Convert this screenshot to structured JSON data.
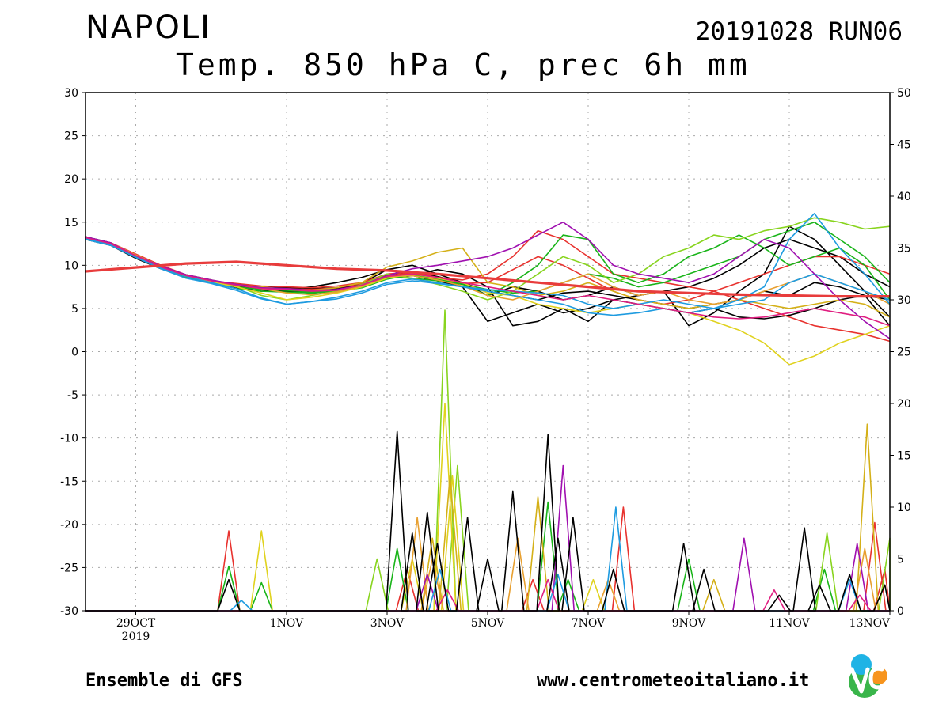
{
  "header": {
    "city": "NAPOLI",
    "run": "20191028 RUN06",
    "subtitle": "Temp. 850 hPa C, prec 6h mm"
  },
  "footer": {
    "left": "Ensemble di GFS",
    "right": "www.centrometeoitaliano.it"
  },
  "logo": {
    "colors": [
      "#39b54a",
      "#1fb3e5",
      "#f7941d"
    ]
  },
  "chart_data": {
    "type": "line",
    "title": "Temp. 850 hPa C, prec 6h mm",
    "x_range_days": [
      0,
      16
    ],
    "x_ticks": [
      {
        "day": 1,
        "label": "29OCT",
        "sub": "2019"
      },
      {
        "day": 4,
        "label": "1NOV"
      },
      {
        "day": 6,
        "label": "3NOV"
      },
      {
        "day": 8,
        "label": "5NOV"
      },
      {
        "day": 10,
        "label": "7NOV"
      },
      {
        "day": 12,
        "label": "9NOV"
      },
      {
        "day": 14,
        "label": "11NOV"
      },
      {
        "day": 16,
        "label": "13NOV"
      }
    ],
    "y_left": {
      "min": -30,
      "max": 30,
      "ticks": [
        30,
        25,
        20,
        15,
        10,
        5,
        0,
        -5,
        -10,
        -15,
        -20,
        -25,
        -30
      ]
    },
    "y_right": {
      "min": 0,
      "max": 50,
      "ticks": [
        50,
        45,
        40,
        35,
        30,
        25,
        20,
        15,
        10,
        5,
        0
      ]
    },
    "grid": true,
    "temp_days": [
      0,
      0.5,
      1,
      1.5,
      2,
      2.5,
      3,
      3.5,
      4,
      4.5,
      5,
      5.5,
      6,
      6.5,
      7,
      7.5,
      8,
      8.5,
      9,
      9.5,
      10,
      10.5,
      11,
      11.5,
      12,
      12.5,
      13,
      13.5,
      14,
      14.5,
      15,
      15.5,
      16
    ],
    "temperature_series": [
      {
        "color": "#000000",
        "values": [
          13.2,
          12.5,
          11,
          9.8,
          8.8,
          8.2,
          7.8,
          7.5,
          7.5,
          7.3,
          7.4,
          7.9,
          9.5,
          10,
          9,
          8,
          6.5,
          7.5,
          7,
          6,
          6.5,
          7.5,
          6.5,
          7,
          7.5,
          8.5,
          10,
          12,
          13,
          12,
          11,
          9,
          7.5
        ]
      },
      {
        "color": "#000000",
        "values": [
          13,
          12.3,
          10.8,
          9.6,
          8.6,
          8,
          7.6,
          7.2,
          7,
          6.8,
          7,
          7.6,
          8.5,
          8.8,
          8.2,
          7.5,
          3.5,
          4.5,
          5.5,
          4.5,
          5,
          6,
          5.5,
          5,
          4.5,
          5,
          4,
          3.8,
          4.2,
          5,
          6,
          6.5,
          6
        ]
      },
      {
        "color": "#000000",
        "values": [
          13.1,
          12.4,
          10.9,
          9.7,
          8.9,
          8.3,
          7.4,
          7,
          7.2,
          7.5,
          8,
          8.6,
          9.5,
          8.8,
          9.5,
          9,
          7.5,
          3,
          3.5,
          5,
          3.5,
          6,
          6.5,
          7,
          3,
          4.5,
          7,
          9,
          14.5,
          13,
          10,
          7,
          4
        ]
      },
      {
        "color": "#000000",
        "values": [
          13.3,
          12.6,
          11.2,
          9.9,
          8.7,
          8.1,
          7.7,
          7.3,
          7.4,
          7.1,
          7.3,
          7.8,
          8.9,
          9.3,
          8.7,
          8,
          7,
          6.5,
          6,
          6.8,
          7,
          6.5,
          6,
          5.5,
          5,
          5.5,
          6,
          7,
          6.5,
          8,
          7.5,
          6.5,
          3
        ]
      },
      {
        "color": "#e8322e",
        "values": [
          13,
          12.6,
          11.3,
          10,
          8.9,
          8.2,
          7.9,
          7.6,
          7.5,
          7.4,
          7.6,
          8,
          9,
          9.2,
          8.6,
          8.3,
          9,
          11,
          14,
          13,
          11,
          9,
          8.5,
          8,
          7.5,
          7,
          6,
          5,
          4,
          3,
          2.5,
          2,
          1.2
        ]
      },
      {
        "color": "#e8322e",
        "values": [
          13.1,
          12.5,
          11.2,
          9.9,
          8.8,
          8.1,
          7.8,
          7.4,
          7.3,
          7.2,
          7.4,
          7.9,
          8.8,
          9.1,
          8.5,
          7.9,
          8,
          9.5,
          11,
          10,
          8.5,
          7,
          6,
          5.5,
          6,
          7,
          8,
          9,
          10,
          11,
          11,
          10,
          9
        ]
      },
      {
        "color": "#19b419",
        "values": [
          13.3,
          12.5,
          11,
          9.8,
          8.7,
          8.1,
          7.5,
          7.2,
          7.1,
          6.9,
          7,
          7.4,
          8.4,
          8.9,
          8.4,
          7.8,
          6.5,
          8,
          10,
          13.5,
          13,
          9,
          8,
          9,
          11,
          12,
          13.5,
          12,
          10,
          11,
          12,
          10,
          6
        ]
      },
      {
        "color": "#19b419",
        "values": [
          13,
          12.4,
          11.1,
          9.7,
          8.6,
          8,
          7.3,
          7,
          6.9,
          6.8,
          7,
          7.6,
          8.6,
          8.5,
          8.2,
          7.8,
          7.2,
          6.8,
          7,
          8,
          9,
          8.5,
          7.5,
          8,
          9,
          10,
          11,
          13,
          14,
          15,
          13,
          11,
          8
        ]
      },
      {
        "color": "#88d41e",
        "values": [
          13.2,
          12.5,
          11,
          9.7,
          8.8,
          8.2,
          7.6,
          6.5,
          6,
          6.5,
          7,
          7.8,
          9,
          8.5,
          7.8,
          7,
          6,
          7,
          9,
          11,
          10,
          8,
          9,
          11,
          12,
          13.5,
          13,
          14,
          14.5,
          15.5,
          15,
          14.2,
          14.5
        ]
      },
      {
        "color": "#e0d21e",
        "values": [
          13,
          12.4,
          11,
          9.7,
          8.7,
          8.1,
          7.5,
          6.8,
          6,
          6.3,
          6.8,
          7.5,
          8.5,
          9,
          8.5,
          8,
          6.8,
          6.5,
          5.5,
          5,
          4.5,
          5,
          5.5,
          5,
          4.5,
          3.5,
          2.5,
          1,
          -1.5,
          -0.5,
          1,
          2,
          3
        ]
      },
      {
        "color": "#d4b018",
        "values": [
          13.1,
          12.5,
          11.1,
          9.8,
          8.9,
          8.3,
          7.7,
          7.5,
          7.2,
          7.1,
          7.4,
          8,
          9.8,
          10.5,
          11.5,
          12,
          8,
          7.5,
          6.5,
          7,
          8,
          7,
          6,
          5.5,
          5,
          5.5,
          6,
          5.5,
          5,
          5.5,
          6,
          5.5,
          4
        ]
      },
      {
        "color": "#e8a030",
        "values": [
          13.2,
          12.6,
          11.2,
          9.9,
          8.8,
          8.2,
          7.8,
          7.3,
          6.8,
          6.6,
          6.9,
          7.6,
          8.7,
          8.8,
          8.3,
          7.6,
          6.5,
          6,
          7,
          8,
          9,
          7.5,
          6.5,
          7,
          6,
          5.5,
          6,
          7,
          8,
          9,
          8,
          7,
          5.5
        ]
      },
      {
        "color": "#1e9be0",
        "values": [
          13.1,
          12.4,
          11,
          9.7,
          8.7,
          8,
          7.3,
          6.2,
          5.5,
          5.8,
          6.3,
          7,
          8,
          8.4,
          8,
          7.5,
          7,
          6.5,
          6,
          5.5,
          4.5,
          4.2,
          4.5,
          5,
          4.5,
          5,
          6,
          7.5,
          13,
          16,
          12,
          9,
          5.5
        ]
      },
      {
        "color": "#1e9be0",
        "values": [
          13,
          12.3,
          10.9,
          9.6,
          8.5,
          7.9,
          7.1,
          6.1,
          5.5,
          5.8,
          6.1,
          6.8,
          7.8,
          8.2,
          7.9,
          7.5,
          7.2,
          7,
          6.8,
          6.5,
          5.5,
          5,
          5.5,
          6,
          5.5,
          5,
          5.5,
          6,
          8,
          9,
          8,
          7,
          6
        ]
      },
      {
        "color": "#a010b0",
        "values": [
          13.3,
          12.6,
          11.1,
          9.9,
          8.9,
          8.3,
          7.8,
          7.4,
          7.3,
          7.1,
          7.2,
          7.7,
          8.8,
          9.6,
          10,
          10.5,
          11,
          12,
          13.5,
          15,
          13,
          10,
          9,
          8.5,
          8,
          9,
          11,
          13,
          12,
          9,
          6,
          3.5,
          1.5
        ]
      },
      {
        "color": "#e01e80",
        "values": [
          13.2,
          12.5,
          11.1,
          9.8,
          8.8,
          8.2,
          7.7,
          7.3,
          7.2,
          7,
          7.1,
          7.7,
          8.7,
          9,
          8.6,
          8,
          7.5,
          7,
          6.5,
          6,
          6.5,
          6,
          5.5,
          5,
          4.5,
          4,
          3.8,
          4,
          4.5,
          5,
          4.5,
          4,
          3
        ]
      }
    ],
    "control_run": {
      "color": "#e83c3c",
      "days": [
        0,
        2,
        3,
        4,
        5,
        6,
        7,
        8,
        9,
        10,
        11,
        12,
        13,
        14,
        15,
        16
      ],
      "values": [
        9.3,
        10.2,
        10.4,
        10,
        9.6,
        9.4,
        9,
        8.5,
        8,
        7.5,
        7,
        6.8,
        6.6,
        6.5,
        6.4,
        6.4
      ]
    },
    "precip_series": [
      {
        "color": "#e8322e",
        "peaks": [
          [
            2.85,
            7.7
          ],
          [
            6.4,
            4
          ],
          [
            8.9,
            3
          ],
          [
            10.7,
            10
          ],
          [
            15.7,
            8.5
          ],
          [
            15.9,
            4
          ]
        ]
      },
      {
        "color": "#19b419",
        "peaks": [
          [
            2.85,
            4.3
          ],
          [
            3.5,
            2.7
          ],
          [
            6.2,
            6
          ],
          [
            9.2,
            10.5
          ],
          [
            9.6,
            3
          ],
          [
            12,
            5
          ],
          [
            14.7,
            4
          ]
        ]
      },
      {
        "color": "#88d41e",
        "peaks": [
          [
            5.8,
            5
          ],
          [
            7.15,
            29
          ],
          [
            7.4,
            14
          ],
          [
            14.75,
            7.5
          ],
          [
            16,
            7
          ]
        ]
      },
      {
        "color": "#e0d21e",
        "peaks": [
          [
            3.5,
            7.7
          ],
          [
            6.5,
            5
          ],
          [
            7.15,
            20
          ],
          [
            7.3,
            13
          ],
          [
            10.1,
            3
          ]
        ]
      },
      {
        "color": "#d4b018",
        "peaks": [
          [
            6.9,
            7
          ],
          [
            7.25,
            13
          ],
          [
            9,
            11
          ],
          [
            12.5,
            3
          ],
          [
            15.55,
            18
          ]
        ]
      },
      {
        "color": "#e8a030",
        "peaks": [
          [
            6.6,
            9
          ],
          [
            6.9,
            5
          ],
          [
            8.6,
            7
          ],
          [
            10.4,
            3
          ],
          [
            15.5,
            6
          ]
        ]
      },
      {
        "color": "#a010b0",
        "peaks": [
          [
            6.8,
            3.5
          ],
          [
            9.5,
            14
          ],
          [
            13.1,
            7
          ],
          [
            15.35,
            6.5
          ]
        ]
      },
      {
        "color": "#1e9be0",
        "peaks": [
          [
            3.1,
            1
          ],
          [
            7.05,
            4
          ],
          [
            9.4,
            3.5
          ],
          [
            10.55,
            10
          ],
          [
            15.2,
            3
          ]
        ]
      },
      {
        "color": "#e01e80",
        "peaks": [
          [
            7.2,
            2
          ],
          [
            9.2,
            3
          ],
          [
            13.7,
            2
          ],
          [
            15.4,
            1.5
          ]
        ]
      },
      {
        "color": "#000000",
        "peaks": [
          [
            2.85,
            3
          ],
          [
            6.2,
            17.3
          ],
          [
            6.5,
            7.5
          ],
          [
            6.8,
            9.5
          ],
          [
            7.0,
            6.5
          ],
          [
            7.6,
            9
          ],
          [
            8.0,
            5
          ],
          [
            8.5,
            11.5
          ],
          [
            9.2,
            17
          ],
          [
            9.4,
            7
          ],
          [
            9.7,
            9
          ],
          [
            10.5,
            4
          ],
          [
            11.9,
            6.5
          ],
          [
            12.3,
            4
          ],
          [
            13.8,
            1.5
          ],
          [
            14.3,
            8
          ],
          [
            14.6,
            2.5
          ],
          [
            15.2,
            3.5
          ],
          [
            15.9,
            2.5
          ]
        ]
      }
    ]
  }
}
